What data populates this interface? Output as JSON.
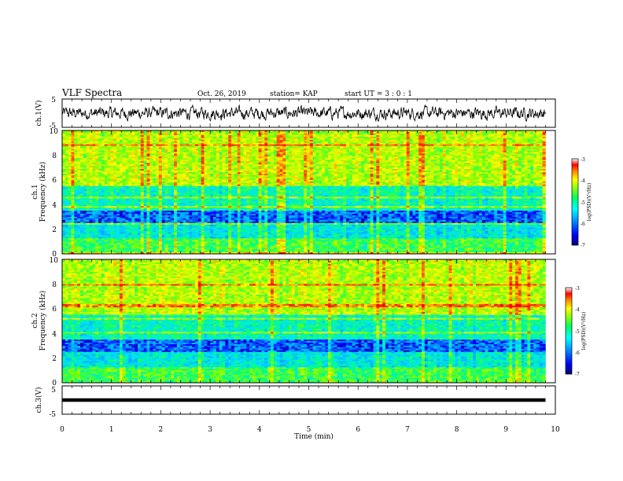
{
  "header": {
    "title": "VLF Spectra",
    "date": "Oct. 26, 2019",
    "station": "station= KAP",
    "start_ut": "start  UT  =   3  :  0  :  1"
  },
  "colors": {
    "colormap": [
      "#00006e",
      "#0000ff",
      "#00a0ff",
      "#00e0ff",
      "#00ff80",
      "#80ff00",
      "#ffff00",
      "#ff8000",
      "#ff0000",
      "#ffffff"
    ]
  },
  "chart_data": [
    {
      "type": "line",
      "name": "ch1-waveform",
      "ylabel": "ch.1(V)",
      "ylim": [
        -5,
        5
      ],
      "yticks": [
        "5",
        "-5"
      ],
      "xlim": [
        0,
        10
      ],
      "note_values": "noisy waveform between about -2.5 and 2.5 V"
    },
    {
      "type": "heatmap",
      "name": "ch1-spectrogram",
      "ylabel": [
        "ch.1",
        "Frequency  (kHz)"
      ],
      "ylim": [
        0,
        10
      ],
      "yticks": [
        "0",
        "2",
        "4",
        "6",
        "8",
        "10"
      ],
      "xlim": [
        0,
        10
      ],
      "x_data_end": 9.8,
      "colorbar": {
        "label": "log(PSD)(V²/Hz)",
        "range": [
          -7,
          -3
        ],
        "ticks": [
          "-3",
          "-4",
          "-5",
          "-6",
          "-7"
        ]
      }
    },
    {
      "type": "heatmap",
      "name": "ch2-spectrogram",
      "ylabel": [
        "ch.2",
        "Frequency  (kHz)"
      ],
      "ylim": [
        0,
        10
      ],
      "yticks": [
        "0",
        "2",
        "4",
        "6",
        "8",
        "10"
      ],
      "xlim": [
        0,
        10
      ],
      "x_data_end": 9.8,
      "colorbar": {
        "label": "log(PSD)(V²/Hz)",
        "range": [
          -7,
          -3
        ],
        "ticks": [
          "-3",
          "-4",
          "-5",
          "-6",
          "-7"
        ]
      }
    },
    {
      "type": "line",
      "name": "ch3-waveform",
      "ylabel": "ch.3(V)",
      "ylim": [
        -5,
        5
      ],
      "yticks": [
        "5",
        "-5"
      ],
      "xlim": [
        0,
        10
      ],
      "value": 0,
      "xlabel": "Time  (min)",
      "xticks": [
        "0",
        "1",
        "2",
        "3",
        "4",
        "5",
        "6",
        "7",
        "8",
        "9",
        "10"
      ]
    }
  ]
}
